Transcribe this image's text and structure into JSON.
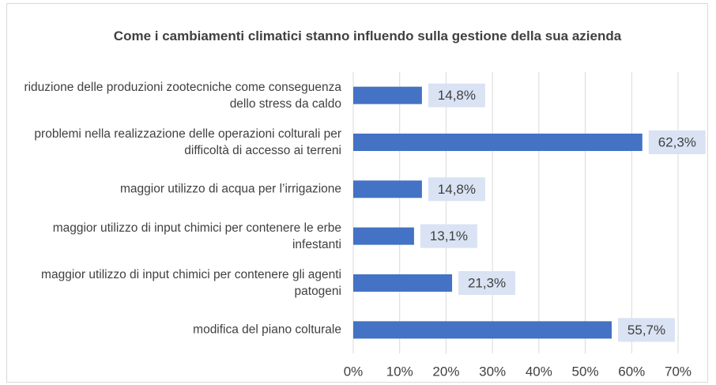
{
  "chart_data": {
    "type": "bar",
    "orientation": "horizontal",
    "title": "Come i cambiamenti climatici stanno influendo sulla gestione della sua azienda",
    "categories": [
      "riduzione delle produzioni zootecniche come conseguenza dello stress da caldo",
      "problemi nella realizzazione delle operazioni colturali per difficoltà di accesso ai terreni",
      "maggior utilizzo di acqua per l’irrigazione",
      "maggior utilizzo di input chimici per contenere le erbe infestanti",
      "maggior utilizzo di input chimici per contenere gli agenti patogeni",
      "modifica del piano colturale"
    ],
    "values": [
      14.8,
      62.3,
      14.8,
      13.1,
      21.3,
      55.7
    ],
    "value_labels": [
      "14,8%",
      "62,3%",
      "14,8%",
      "13,1%",
      "21,3%",
      "55,7%"
    ],
    "color": "#4472c4",
    "xlim": [
      0,
      70
    ],
    "xticks": [
      {
        "value": 0,
        "label": "0%"
      },
      {
        "value": 10,
        "label": "10%"
      },
      {
        "value": 20,
        "label": "20%"
      },
      {
        "value": 30,
        "label": "30%"
      },
      {
        "value": 40,
        "label": "40%"
      },
      {
        "value": 50,
        "label": "50%"
      },
      {
        "value": 60,
        "label": "60%"
      },
      {
        "value": 70,
        "label": "70%"
      }
    ],
    "grid": true
  }
}
